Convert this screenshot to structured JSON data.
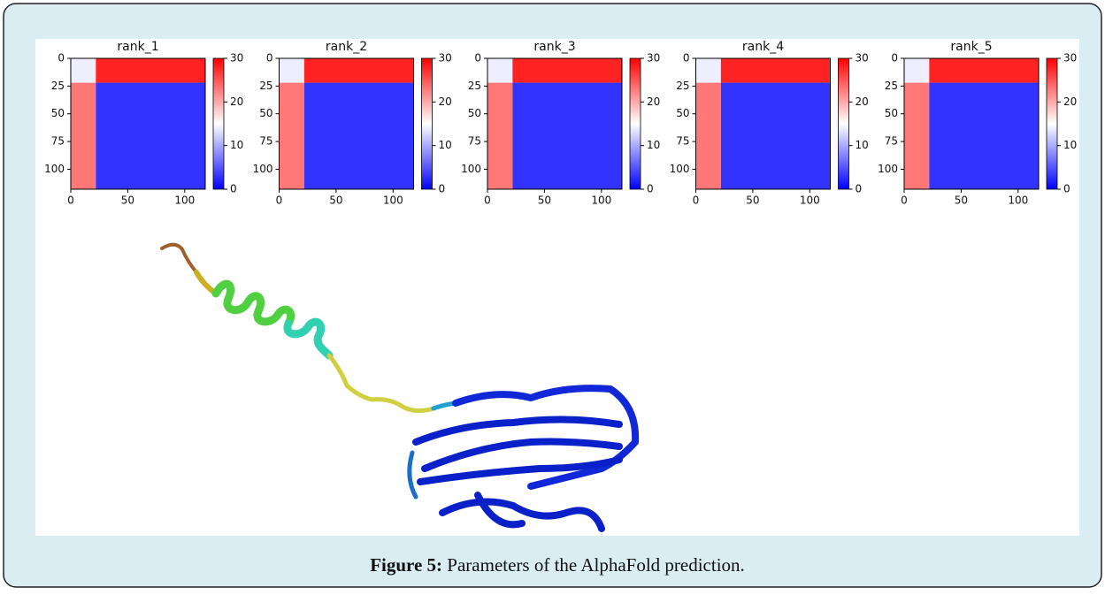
{
  "figure": {
    "label": "Figure 5:",
    "caption": "Parameters of the AlphaFold prediction."
  },
  "chart_data": [
    {
      "type": "heatmap",
      "title": "rank_1",
      "colormap": "bwr",
      "x_edges": [
        0,
        22,
        118
      ],
      "y_edges": [
        0,
        22,
        118
      ],
      "values": [
        [
          14,
          28
        ],
        [
          23,
          3
        ]
      ],
      "xlim": [
        0,
        118
      ],
      "ylim": [
        118,
        0
      ],
      "xticks": [
        0,
        50,
        100
      ],
      "yticks": [
        0,
        25,
        50,
        75,
        100
      ],
      "clim": [
        0,
        30
      ],
      "cticks": [
        0,
        10,
        20,
        30
      ]
    },
    {
      "type": "heatmap",
      "title": "rank_2",
      "colormap": "bwr",
      "x_edges": [
        0,
        22,
        118
      ],
      "y_edges": [
        0,
        22,
        118
      ],
      "values": [
        [
          14,
          28
        ],
        [
          23,
          3
        ]
      ],
      "xlim": [
        0,
        118
      ],
      "ylim": [
        118,
        0
      ],
      "xticks": [
        0,
        50,
        100
      ],
      "yticks": [
        0,
        25,
        50,
        75,
        100
      ],
      "clim": [
        0,
        30
      ],
      "cticks": [
        0,
        10,
        20,
        30
      ]
    },
    {
      "type": "heatmap",
      "title": "rank_3",
      "colormap": "bwr",
      "x_edges": [
        0,
        22,
        118
      ],
      "y_edges": [
        0,
        22,
        118
      ],
      "values": [
        [
          14,
          28
        ],
        [
          23,
          3
        ]
      ],
      "xlim": [
        0,
        118
      ],
      "ylim": [
        118,
        0
      ],
      "xticks": [
        0,
        50,
        100
      ],
      "yticks": [
        0,
        25,
        50,
        75,
        100
      ],
      "clim": [
        0,
        30
      ],
      "cticks": [
        0,
        10,
        20,
        30
      ]
    },
    {
      "type": "heatmap",
      "title": "rank_4",
      "colormap": "bwr",
      "x_edges": [
        0,
        22,
        118
      ],
      "y_edges": [
        0,
        22,
        118
      ],
      "values": [
        [
          14,
          28
        ],
        [
          23,
          3
        ]
      ],
      "xlim": [
        0,
        118
      ],
      "ylim": [
        118,
        0
      ],
      "xticks": [
        0,
        50,
        100
      ],
      "yticks": [
        0,
        25,
        50,
        75,
        100
      ],
      "clim": [
        0,
        30
      ],
      "cticks": [
        0,
        10,
        20,
        30
      ]
    },
    {
      "type": "heatmap",
      "title": "rank_5",
      "colormap": "bwr",
      "x_edges": [
        0,
        22,
        118
      ],
      "y_edges": [
        0,
        22,
        118
      ],
      "values": [
        [
          14,
          28
        ],
        [
          23,
          3
        ]
      ],
      "xlim": [
        0,
        118
      ],
      "ylim": [
        118,
        0
      ],
      "xticks": [
        0,
        50,
        100
      ],
      "yticks": [
        0,
        25,
        50,
        75,
        100
      ],
      "clim": [
        0,
        30
      ],
      "cticks": [
        0,
        10,
        20,
        30
      ]
    }
  ]
}
